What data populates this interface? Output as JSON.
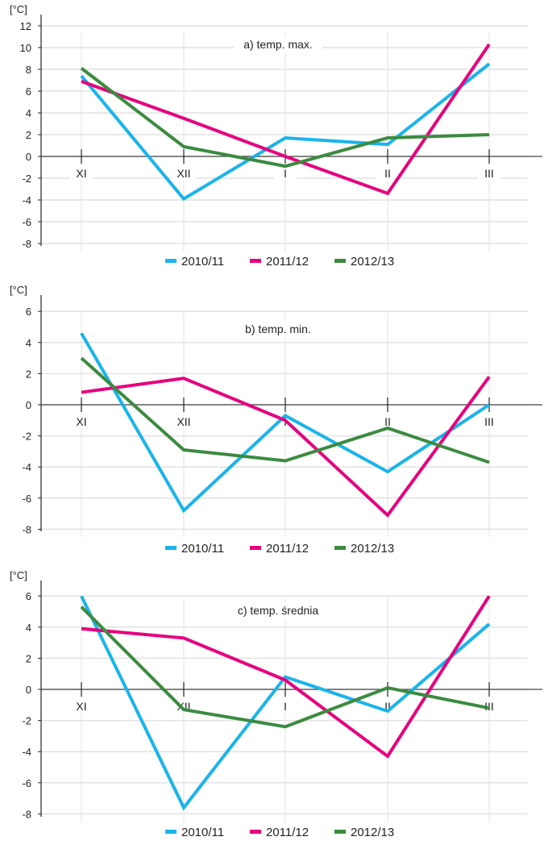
{
  "colors": {
    "2010/11": "#1ab4ea",
    "2011/12": "#e6007e",
    "2012/13": "#3b8b40"
  },
  "chart_data": [
    {
      "type": "line",
      "title": "a) temp. max.",
      "ylabel": "[°C]",
      "categories": [
        "XI",
        "XII",
        "I",
        "II",
        "III"
      ],
      "yticks": [
        12,
        10,
        8,
        6,
        4,
        2,
        0,
        -2,
        -4,
        -6,
        -8
      ],
      "ylim": [
        -8,
        13
      ],
      "grid": true,
      "legend": "bottom",
      "series": [
        {
          "name": "2010/11",
          "values": [
            7.4,
            -3.9,
            1.7,
            1.1,
            8.5
          ]
        },
        {
          "name": "2011/12",
          "values": [
            6.9,
            3.5,
            0.0,
            -3.4,
            10.3
          ]
        },
        {
          "name": "2012/13",
          "values": [
            8.1,
            0.9,
            -0.9,
            1.7,
            2.0
          ]
        }
      ]
    },
    {
      "type": "line",
      "title": "b) temp. min.",
      "ylabel": "[°C]",
      "categories": [
        "XI",
        "XII",
        "I",
        "II",
        "III"
      ],
      "yticks": [
        6,
        4,
        2,
        0,
        -2,
        -4,
        -6,
        -8
      ],
      "ylim": [
        -8,
        7
      ],
      "grid": true,
      "legend": "bottom",
      "series": [
        {
          "name": "2010/11",
          "values": [
            4.6,
            -6.8,
            -0.7,
            -4.3,
            0.0
          ]
        },
        {
          "name": "2011/12",
          "values": [
            0.8,
            1.7,
            -1.0,
            -7.1,
            1.8
          ]
        },
        {
          "name": "2012/13",
          "values": [
            3.0,
            -2.9,
            -3.6,
            -1.5,
            -3.7
          ]
        }
      ]
    },
    {
      "type": "line",
      "title": "c) temp. średnia",
      "ylabel": "[°C]",
      "categories": [
        "XI",
        "XII",
        "I",
        "II",
        "III"
      ],
      "yticks": [
        6,
        4,
        2,
        0,
        -2,
        -4,
        -6,
        -8
      ],
      "ylim": [
        -8,
        7
      ],
      "grid": true,
      "legend": "bottom",
      "series": [
        {
          "name": "2010/11",
          "values": [
            6.0,
            -7.6,
            0.8,
            -1.4,
            4.2
          ]
        },
        {
          "name": "2011/12",
          "values": [
            3.9,
            3.3,
            0.6,
            -4.3,
            6.0
          ]
        },
        {
          "name": "2012/13",
          "values": [
            5.3,
            -1.3,
            -2.4,
            0.1,
            -1.2
          ]
        }
      ]
    }
  ]
}
